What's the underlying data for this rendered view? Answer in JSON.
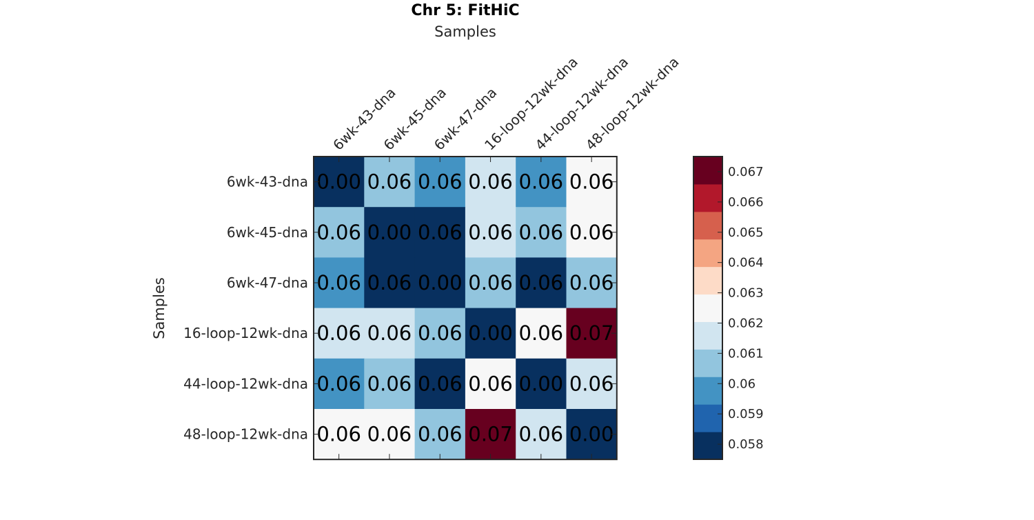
{
  "chart_data": {
    "type": "heatmap",
    "title": "Chr 5: FitHiC",
    "xlabel": "Samples",
    "ylabel": "Samples",
    "x_categories": [
      "6wk-43-dna",
      "6wk-45-dna",
      "6wk-47-dna",
      "16-loop-12wk-dna",
      "44-loop-12wk-dna",
      "48-loop-12wk-dna"
    ],
    "y_categories": [
      "6wk-43-dna",
      "6wk-45-dna",
      "6wk-47-dna",
      "16-loop-12wk-dna",
      "44-loop-12wk-dna",
      "48-loop-12wk-dna"
    ],
    "values": [
      [
        0.0,
        0.0608,
        0.0602,
        0.0615,
        0.0602,
        0.0628
      ],
      [
        0.0608,
        0.0,
        0.0581,
        0.0618,
        0.0603,
        0.0628
      ],
      [
        0.0602,
        0.0581,
        0.0,
        0.0609,
        0.0581,
        0.0608
      ],
      [
        0.0615,
        0.0618,
        0.0609,
        0.0,
        0.0628,
        0.0668
      ],
      [
        0.0602,
        0.0603,
        0.0581,
        0.0628,
        0.0,
        0.0618
      ],
      [
        0.0628,
        0.0628,
        0.0608,
        0.0668,
        0.0618,
        0.0
      ]
    ],
    "cell_labels": [
      [
        "0.00",
        "0.06",
        "0.06",
        "0.06",
        "0.06",
        "0.06"
      ],
      [
        "0.06",
        "0.00",
        "0.06",
        "0.06",
        "0.06",
        "0.06"
      ],
      [
        "0.06",
        "0.06",
        "0.00",
        "0.06",
        "0.06",
        "0.06"
      ],
      [
        "0.06",
        "0.06",
        "0.06",
        "0.00",
        "0.06",
        "0.07"
      ],
      [
        "0.06",
        "0.06",
        "0.06",
        "0.06",
        "0.00",
        "0.06"
      ],
      [
        "0.06",
        "0.06",
        "0.06",
        "0.07",
        "0.06",
        "0.00"
      ]
    ],
    "colorbar": {
      "range": [
        0.0575,
        0.0675
      ],
      "ticks": [
        0.058,
        0.059,
        0.06,
        0.061,
        0.062,
        0.063,
        0.064,
        0.065,
        0.066,
        0.067
      ],
      "tick_labels": [
        "0.058",
        "0.059",
        "0.06",
        "0.061",
        "0.062",
        "0.063",
        "0.064",
        "0.065",
        "0.066",
        "0.067"
      ],
      "colors": [
        "#08305f",
        "#2064ae",
        "#4393c3",
        "#92c5de",
        "#d1e5f0",
        "#f7f7f7",
        "#fddbc7",
        "#f4a582",
        "#d6604d",
        "#b2182b",
        "#67001f"
      ]
    },
    "grid": false,
    "colorbar_position": "right"
  }
}
